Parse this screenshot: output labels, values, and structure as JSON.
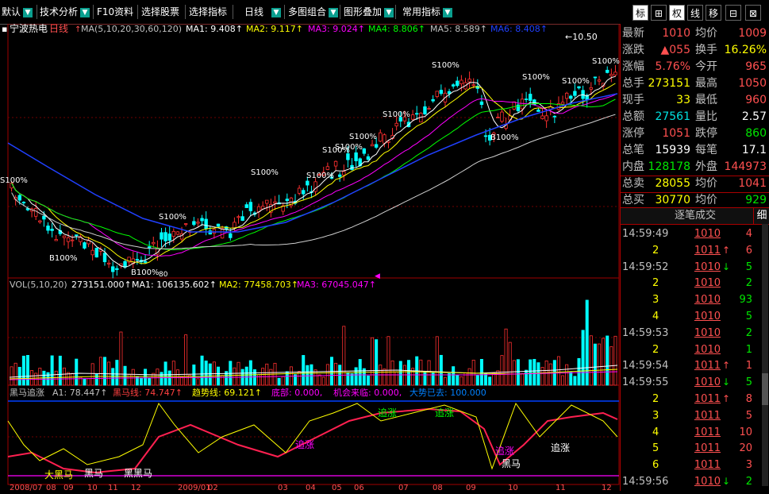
{
  "toolbar": {
    "items": [
      {
        "label": "默认"
      },
      {
        "label": "技术分析"
      },
      {
        "label": "F10资料"
      },
      {
        "label": "选择股票"
      },
      {
        "label": "选择指标"
      },
      {
        "label": "日线"
      },
      {
        "label": "多图组合"
      },
      {
        "label": "图形叠加"
      },
      {
        "label": "常用指标"
      }
    ],
    "right_buttons": [
      "标",
      "⊞",
      "权",
      "线",
      "移",
      "⊟",
      "⊠"
    ]
  },
  "main_chart": {
    "stock_name": "宁波热电",
    "period": "日线",
    "ma_header": "MA(5,10,20,30,60,120)",
    "ma_values": [
      {
        "label": "MA1: 9.408↑",
        "color": "#ffffff"
      },
      {
        "label": "MA2: 9.117↑",
        "color": "#ffff00"
      },
      {
        "label": "MA3: 9.024↑",
        "color": "#ff00ff"
      },
      {
        "label": "MA4: 8.806↑",
        "color": "#00ff00"
      },
      {
        "label": "MA5: 8.589↑",
        "color": "#c0c0c0"
      },
      {
        "label": "MA6: 8.408↑",
        "color": "#2040ff"
      }
    ],
    "high_marker": "10.50",
    "annotations": [
      "S100%",
      "B100%",
      "S100%",
      "S100%",
      "S100%",
      "S100%",
      "S100%",
      "S100%",
      "S100%",
      "B100%",
      "S100%",
      "S100%",
      "S100%",
      "B100%"
    ],
    "low_marker": "80"
  },
  "vol_chart": {
    "header": "VOL(5,10,20)",
    "value": "273151.000↑",
    "ma_values": [
      {
        "label": "MA1: 106135.602↑",
        "color": "#ffffff"
      },
      {
        "label": "MA2: 77458.703↑",
        "color": "#ffff00"
      },
      {
        "label": "MA3: 67045.047↑",
        "color": "#ff00ff"
      }
    ]
  },
  "indicator": {
    "header": "黑马追涨",
    "values": [
      {
        "label": "A1: 78.447↑",
        "color": "#c0c0c0"
      },
      {
        "label": "黑马线: 74.747↑",
        "color": "#ff4040"
      },
      {
        "label": "趋势线: 69.121↑",
        "color": "#ffff00"
      },
      {
        "label": "底部: 0.000,",
        "color": "#ff00ff"
      },
      {
        "label": "机会来临: 0.000,",
        "color": "#ff00ff"
      },
      {
        "label": "大势已去: 100.000",
        "color": "#0080ff"
      }
    ],
    "labels": [
      "大黑马",
      "黑马",
      "黑黑马",
      "追涨",
      "追涨",
      "追涨",
      "追涨",
      "黑马",
      "追涨"
    ],
    "dates": [
      "2008/07",
      "08",
      "09",
      "10",
      "11",
      "12",
      "2009/01",
      "02",
      "03",
      "04",
      "05",
      "06",
      "07",
      "08",
      "09",
      "10",
      "11",
      "12"
    ]
  },
  "quote": {
    "rows": [
      {
        "l1": "最新",
        "v1": "1010",
        "c1": "red",
        "l2": "均价",
        "v2": "1009",
        "c2": "red"
      },
      {
        "l1": "涨跌",
        "v1": "▲055",
        "c1": "red",
        "l2": "换手",
        "v2": "16.26%",
        "c2": "yellow"
      },
      {
        "l1": "涨幅",
        "v1": "5.76%",
        "c1": "red",
        "l2": "今开",
        "v2": "965",
        "c2": "red"
      },
      {
        "l1": "总手",
        "v1": "273151",
        "c1": "yellow",
        "l2": "最高",
        "v2": "1050",
        "c2": "red"
      },
      {
        "l1": "现手",
        "v1": "33",
        "c1": "yellow",
        "l2": "最低",
        "v2": "960",
        "c2": "red"
      },
      {
        "l1": "总额",
        "v1": "27561",
        "c1": "cyan",
        "l2": "量比",
        "v2": "2.57",
        "c2": "white"
      },
      {
        "l1": "涨停",
        "v1": "1051",
        "c1": "red",
        "l2": "跌停",
        "v2": "860",
        "c2": "green"
      },
      {
        "l1": "总笔",
        "v1": "15939",
        "c1": "white",
        "l2": "每笔",
        "v2": "17.1",
        "c2": "white"
      },
      {
        "l1": "内盘",
        "v1": "128178",
        "c1": "green",
        "l2": "外盘",
        "v2": "144973",
        "c2": "red"
      },
      {
        "l1": "总卖",
        "v1": "28055",
        "c1": "yellow",
        "l2": "均价",
        "v2": "1041",
        "c2": "red"
      },
      {
        "l1": "总买",
        "v1": "30770",
        "c1": "yellow",
        "l2": "均价",
        "v2": "929",
        "c2": "green"
      }
    ],
    "ticks_title": "逐笔成交",
    "ticks_tab": "细",
    "ticks": [
      {
        "time": "14:59:49",
        "price": "1010",
        "arrow": "",
        "vol": "4",
        "pc": "red",
        "vc": "red"
      },
      {
        "time": "2",
        "price": "1011",
        "arrow": "↑",
        "vol": "6",
        "pc": "red",
        "vc": "red"
      },
      {
        "time": "14:59:52",
        "price": "1010",
        "arrow": "↓",
        "vol": "5",
        "pc": "red",
        "vc": "green"
      },
      {
        "time": "2",
        "price": "1010",
        "arrow": "",
        "vol": "2",
        "pc": "red",
        "vc": "green"
      },
      {
        "time": "3",
        "price": "1010",
        "arrow": "",
        "vol": "93",
        "pc": "red",
        "vc": "green"
      },
      {
        "time": "4",
        "price": "1010",
        "arrow": "",
        "vol": "5",
        "pc": "red",
        "vc": "green"
      },
      {
        "time": "14:59:53",
        "price": "1010",
        "arrow": "",
        "vol": "2",
        "pc": "red",
        "vc": "green"
      },
      {
        "time": "2",
        "price": "1010",
        "arrow": "",
        "vol": "1",
        "pc": "red",
        "vc": "green"
      },
      {
        "time": "14:59:54",
        "price": "1011",
        "arrow": "↑",
        "vol": "1",
        "pc": "red",
        "vc": "red"
      },
      {
        "time": "14:59:55",
        "price": "1010",
        "arrow": "↓",
        "vol": "5",
        "pc": "red",
        "vc": "green"
      },
      {
        "time": "2",
        "price": "1011",
        "arrow": "↑",
        "vol": "8",
        "pc": "red",
        "vc": "red"
      },
      {
        "time": "3",
        "price": "1011",
        "arrow": "",
        "vol": "5",
        "pc": "red",
        "vc": "red"
      },
      {
        "time": "4",
        "price": "1011",
        "arrow": "",
        "vol": "10",
        "pc": "red",
        "vc": "red"
      },
      {
        "time": "5",
        "price": "1011",
        "arrow": "",
        "vol": "20",
        "pc": "red",
        "vc": "red"
      },
      {
        "time": "6",
        "price": "1011",
        "arrow": "",
        "vol": "3",
        "pc": "red",
        "vc": "red"
      },
      {
        "time": "14:59:56",
        "price": "1010",
        "arrow": "↓",
        "vol": "2",
        "pc": "red",
        "vc": "green"
      }
    ]
  },
  "colors": {
    "up": "#ff3030",
    "down": "#00ffff",
    "grid": "#a00000",
    "ma60": "#2040ff"
  }
}
